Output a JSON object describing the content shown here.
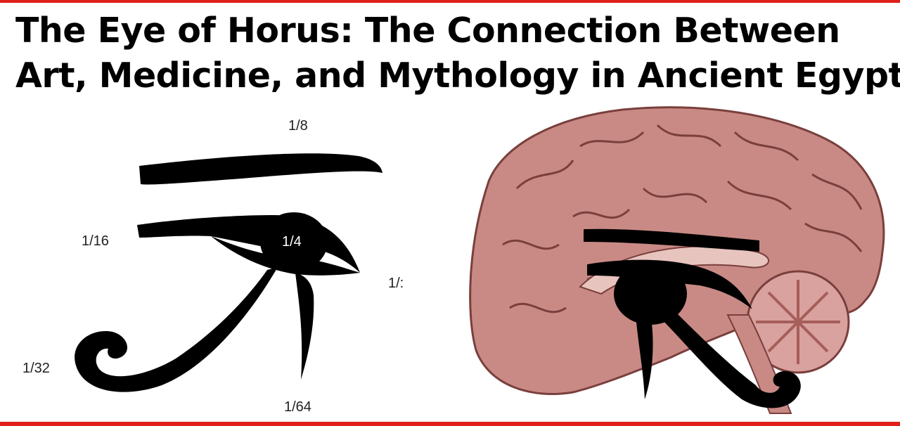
{
  "title": {
    "line1": "The Eye of Horus: The Connection Between",
    "line2": "Art, Medicine, and Mythology in Ancient Egypt"
  },
  "eye_diagram": {
    "fractions": {
      "eyebrow": "1/8",
      "inner_corner": "1/16",
      "pupil": "1/4",
      "outer_corner": "1/:",
      "spiral": "1/32",
      "teardrop": "1/64"
    }
  },
  "colors": {
    "frame": "#e0201a",
    "ink": "#000000",
    "brain": "#c98a86"
  }
}
